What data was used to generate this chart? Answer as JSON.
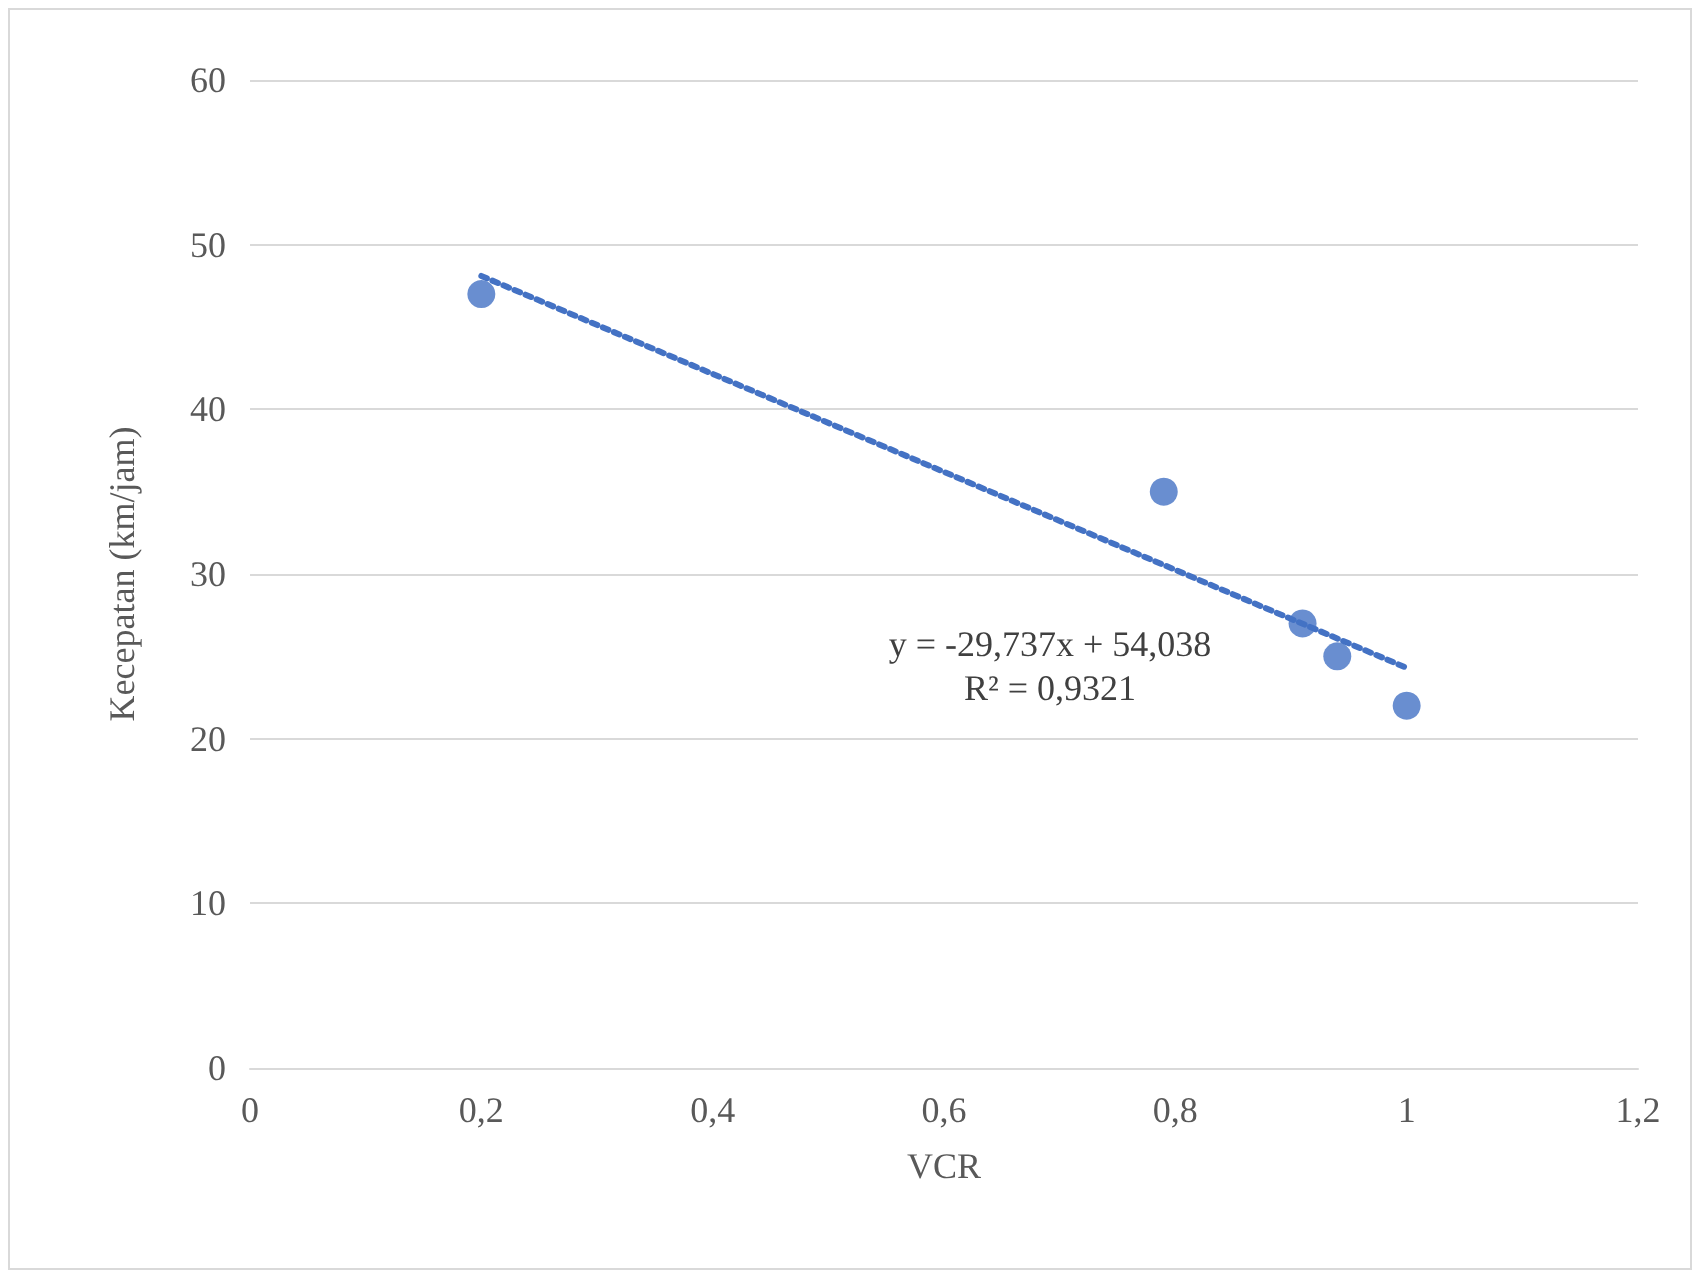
{
  "chart_data": {
    "type": "scatter",
    "xlabel": "VCR",
    "ylabel": "Kecepatan (km/jam)",
    "series": [
      {
        "color": "#4472c4",
        "x": [
          0.2,
          0.79,
          0.91,
          0.94,
          1.0
        ],
        "values": [
          47,
          35,
          27,
          25,
          22
        ],
        "marker": "circle"
      },
      {
        "type": "line",
        "color": "#4472c4",
        "x": [
          0.2,
          1.0
        ],
        "values": [
          48.1,
          24.3
        ],
        "marker": "none",
        "line_style": "dotted"
      }
    ],
    "annotations": [
      "y = -29,737x + 54,038\nR² = 0,9321"
    ],
    "xlim": [
      0,
      1.2
    ],
    "xticks": [
      0,
      {
        "value": 0.2,
        "label": "0,2"
      },
      {
        "value": 0.4,
        "label": "0,4"
      },
      {
        "value": 0.6,
        "label": "0,6"
      },
      {
        "value": 0.8,
        "label": "0,8"
      },
      1,
      {
        "value": 1.2,
        "label": "1,2"
      }
    ],
    "ylim": [
      0,
      60
    ],
    "yticks": [
      0,
      10,
      20,
      30,
      40,
      50,
      60
    ],
    "grid": "y"
  }
}
